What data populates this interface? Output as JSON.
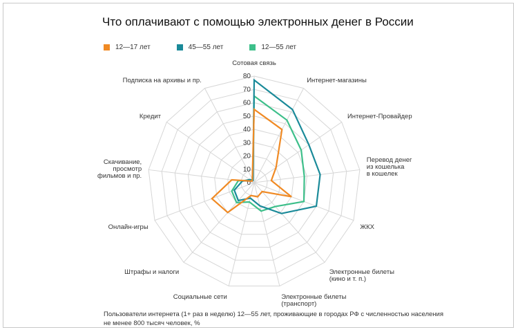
{
  "title": "Что оплачивают с помощью электронных денег в России",
  "footnote": "Пользователи интернета (1+ раз в неделю) 12—55 лет, проживающие в городах РФ с численностью населения не менее 800 тысяч человек, %",
  "colors": {
    "orange": "#f08a24",
    "teal": "#1a8a99",
    "green": "#3dbf8a",
    "grid": "#d6d6d6",
    "text": "#333333"
  },
  "chart_data": {
    "type": "radar",
    "title": "Что оплачивают с помощью электронных денег в России",
    "categories": [
      [
        "Сотовая связь"
      ],
      [
        "Интернет-магазины"
      ],
      [
        "Интернет-Провайдер"
      ],
      [
        "Перевод денег",
        "из кошелька",
        "в кошелек"
      ],
      [
        "ЖКХ"
      ],
      [
        "Электронные билеты",
        "(кино и т. п.)"
      ],
      [
        "Электронные билеты",
        "(транспорт)"
      ],
      [
        "Социальные сети"
      ],
      [
        "Штрафы и налоги"
      ],
      [
        "Онлайн-игры"
      ],
      [
        "Скачивание,",
        "просмотр",
        "фильмов и пр."
      ],
      [
        "Кредит"
      ],
      [
        "Подписка на архивы и пр."
      ]
    ],
    "rlim": [
      0,
      80
    ],
    "ticks": [
      "0",
      "10",
      "20",
      "30",
      "40",
      "50",
      "60",
      "70",
      "80"
    ],
    "tick_values": [
      0,
      10,
      20,
      30,
      40,
      50,
      60,
      70,
      80
    ],
    "legend_position": "top-left",
    "series": [
      {
        "name": "12—17 лет",
        "color": "#f08a24",
        "values": [
          55,
          45,
          20,
          13,
          30,
          9,
          11,
          10,
          30,
          34,
          17,
          2,
          3
        ]
      },
      {
        "name": "45—55 лет",
        "color": "#1a8a99",
        "values": [
          77,
          62,
          50,
          50,
          50,
          31,
          18,
          12,
          18,
          16,
          9,
          4,
          2
        ]
      },
      {
        "name": "12—55 лет",
        "color": "#3dbf8a",
        "values": [
          65,
          53,
          43,
          38,
          40,
          24,
          22,
          15,
          20,
          18,
          12,
          3,
          2
        ]
      }
    ]
  }
}
